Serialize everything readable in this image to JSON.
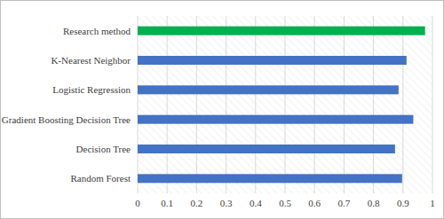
{
  "chart_data": {
    "type": "bar",
    "orientation": "horizontal",
    "categories": [
      "Research method",
      "K-Nearest Neighbor",
      "Logistic Regression",
      "Gradient Boosting Decision Tree",
      "Decision Tree",
      "Random Forest"
    ],
    "values": [
      0.975,
      0.912,
      0.885,
      0.935,
      0.873,
      0.897
    ],
    "colors": [
      "#00b050",
      "#4472c4",
      "#4472c4",
      "#4472c4",
      "#4472c4",
      "#4472c4"
    ],
    "xlim": [
      0,
      1
    ],
    "xticks": [
      0,
      0.1,
      0.2,
      0.3,
      0.4,
      0.5,
      0.6,
      0.7,
      0.8,
      0.9,
      1
    ],
    "grid": true
  }
}
